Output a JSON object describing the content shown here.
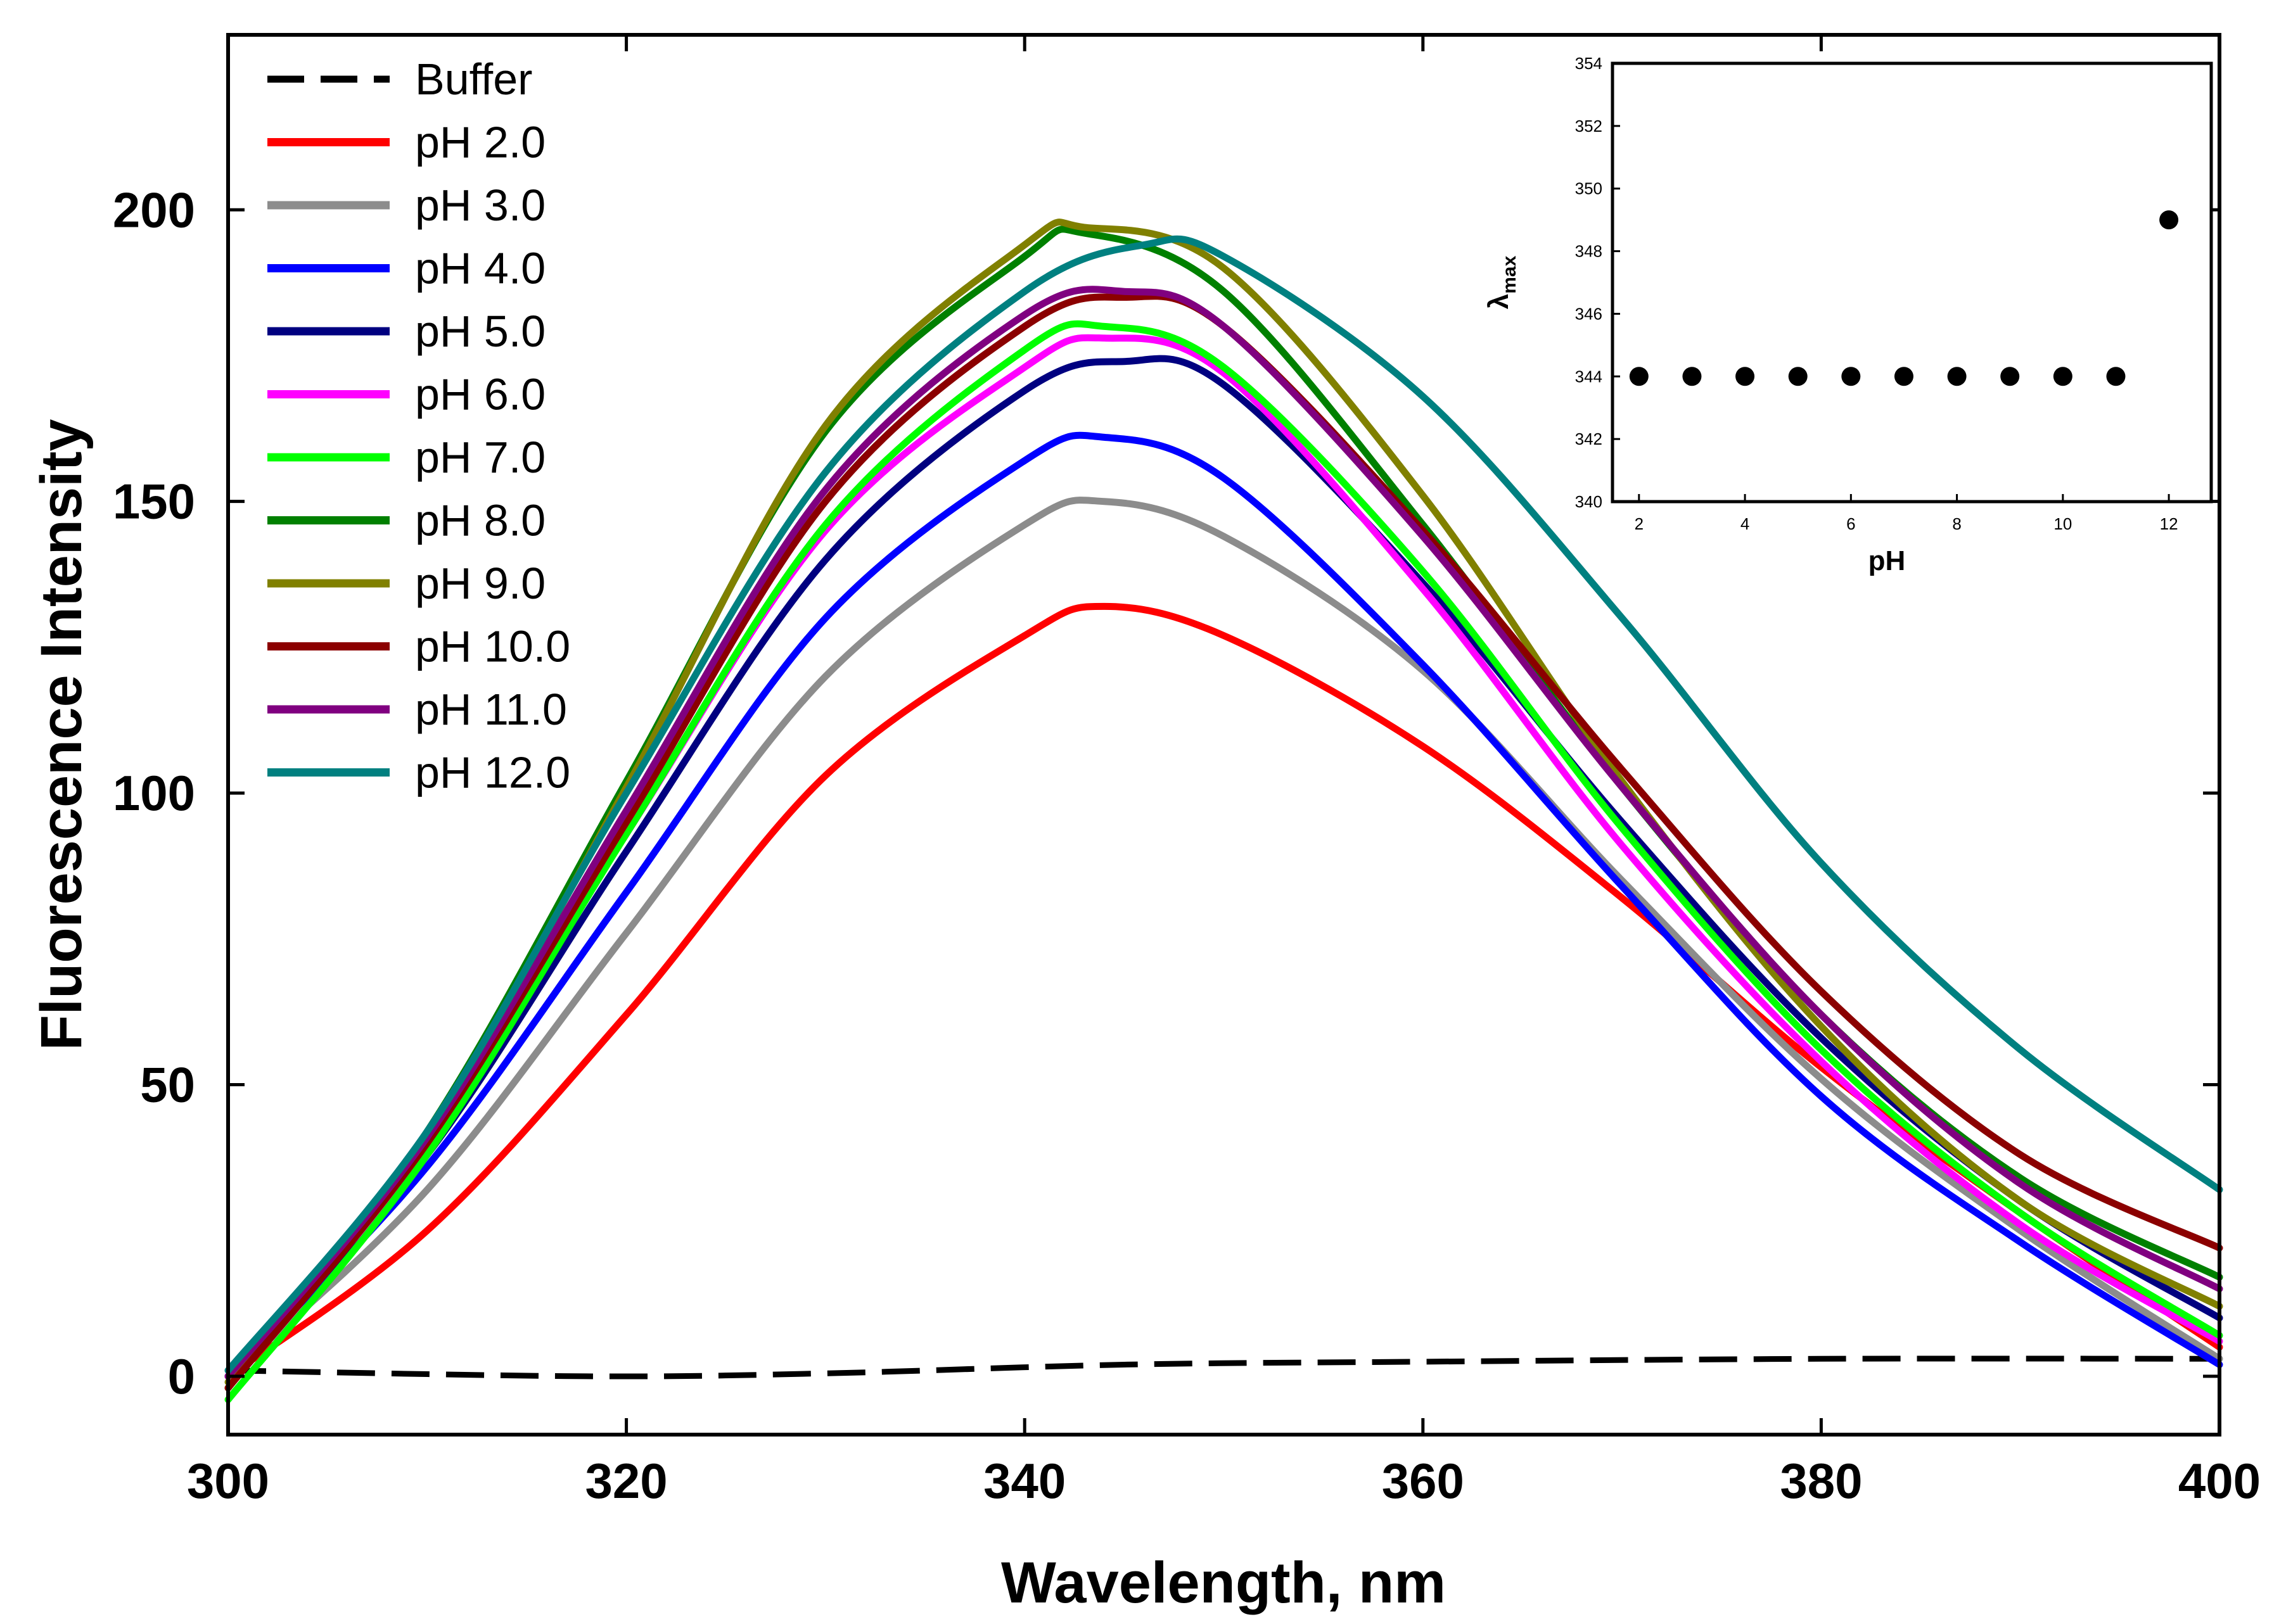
{
  "chart_data": [
    {
      "type": "line",
      "title": "",
      "xlabel": "Wavelength, nm",
      "ylabel": "Fluorescence Intensity",
      "xlim": [
        300,
        400
      ],
      "ylim": [
        -10,
        230
      ],
      "xticks": [
        300,
        320,
        340,
        360,
        380,
        400
      ],
      "yticks": [
        0,
        50,
        100,
        150,
        200
      ],
      "x_tick_labels": [
        "300",
        "320",
        "340",
        "360",
        "380",
        "400"
      ],
      "y_tick_labels": [
        "0",
        "50",
        "100",
        "150",
        "200"
      ],
      "legend": "top-left",
      "series": [
        {
          "name": "Buffer",
          "color": "#000000",
          "dashed": true,
          "x": [
            300,
            318,
            330,
            345,
            360,
            380,
            400
          ],
          "values": [
            1,
            0,
            0.5,
            2,
            2.5,
            3,
            3
          ]
        },
        {
          "name": "pH 2.0",
          "color": "#ff0000",
          "x": [
            300,
            310,
            320,
            330,
            340,
            344,
            350,
            360,
            370,
            380,
            390,
            400
          ],
          "values": [
            0,
            25,
            62,
            103,
            127,
            132,
            127,
            108,
            82,
            53,
            28,
            5
          ]
        },
        {
          "name": "pH 3.0",
          "color": "#8c8c8c",
          "x": [
            300,
            310,
            320,
            330,
            340,
            344,
            350,
            360,
            370,
            380,
            390,
            400
          ],
          "values": [
            0,
            32,
            76,
            120,
            146,
            150,
            144,
            121,
            85,
            51,
            25,
            3
          ]
        },
        {
          "name": "pH 4.0",
          "color": "#0000ff",
          "x": [
            300,
            310,
            320,
            330,
            340,
            344,
            350,
            360,
            370,
            380,
            390,
            400
          ],
          "values": [
            0,
            36,
            83,
            130,
            157,
            161,
            154,
            122,
            84,
            48,
            23,
            2
          ]
        },
        {
          "name": "pH 5.0",
          "color": "#000080",
          "x": [
            300,
            310,
            320,
            330,
            340,
            345,
            350,
            360,
            370,
            380,
            390,
            400
          ],
          "values": [
            0,
            38,
            90,
            140,
            169,
            174,
            170,
            136,
            95,
            58,
            30,
            10
          ]
        },
        {
          "name": "pH 6.0",
          "color": "#ff00ff",
          "x": [
            300,
            310,
            320,
            330,
            340,
            344,
            350,
            360,
            370,
            380,
            390,
            400
          ],
          "values": [
            0,
            39,
            93,
            145,
            173,
            178,
            172,
            135,
            91,
            54,
            26,
            6
          ]
        },
        {
          "name": "pH 7.0",
          "color": "#00ff00",
          "x": [
            300,
            310,
            320,
            330,
            340,
            344,
            350,
            360,
            370,
            380,
            390,
            400
          ],
          "values": [
            -4,
            38,
            93,
            146,
            176,
            180,
            173,
            138,
            94,
            56,
            28,
            7
          ]
        },
        {
          "name": "pH 8.0",
          "color": "#008000",
          "x": [
            300,
            310,
            320,
            330,
            340,
            343,
            350,
            360,
            370,
            380,
            390,
            400
          ],
          "values": [
            -2,
            42,
            102,
            162,
            192,
            196,
            186,
            146,
            101,
            62,
            34,
            17
          ]
        },
        {
          "name": "pH 9.0",
          "color": "#808000",
          "x": [
            300,
            310,
            320,
            330,
            340,
            343,
            350,
            360,
            370,
            380,
            390,
            400
          ],
          "values": [
            -1,
            41,
            101,
            163,
            194,
            197,
            190,
            151,
            102,
            60,
            30,
            12
          ]
        },
        {
          "name": "pH 10.0",
          "color": "#8b0000",
          "x": [
            300,
            310,
            320,
            330,
            340,
            345,
            350,
            360,
            370,
            380,
            390,
            400
          ],
          "values": [
            -2,
            40,
            95,
            150,
            180,
            185,
            180,
            145,
            104,
            66,
            38,
            22
          ]
        },
        {
          "name": "pH 11.0",
          "color": "#800080",
          "x": [
            300,
            310,
            320,
            330,
            340,
            345,
            350,
            360,
            370,
            380,
            390,
            400
          ],
          "values": [
            0,
            41,
            97,
            152,
            182,
            186,
            180,
            144,
            101,
            62,
            33,
            15
          ]
        },
        {
          "name": "pH 12.0",
          "color": "#008080",
          "x": [
            300,
            310,
            320,
            330,
            340,
            346,
            350,
            360,
            370,
            380,
            390,
            400
          ],
          "values": [
            1,
            42,
            100,
            155,
            186,
            194,
            192,
            168,
            130,
            88,
            56,
            32
          ]
        }
      ]
    },
    {
      "type": "scatter",
      "title": "",
      "xlabel": "pH",
      "ylabel_main": "λ",
      "ylabel_sub": "max",
      "xlim": [
        1.5,
        12.8
      ],
      "ylim": [
        340,
        354
      ],
      "xticks": [
        2,
        4,
        6,
        8,
        10,
        12
      ],
      "yticks": [
        340,
        342,
        344,
        346,
        348,
        350,
        352,
        354
      ],
      "x_tick_labels": [
        "2",
        "4",
        "6",
        "8",
        "10",
        "12"
      ],
      "y_tick_labels": [
        "340",
        "342",
        "344",
        "346",
        "348",
        "350",
        "352",
        "354"
      ],
      "legend": "none",
      "series": [
        {
          "name": "λmax",
          "color": "#000000",
          "x": [
            2,
            3,
            4,
            5,
            6,
            7,
            8,
            9,
            10,
            11,
            12
          ],
          "values": [
            344,
            344,
            344,
            344,
            344,
            344,
            344,
            344,
            344,
            344,
            349
          ]
        }
      ]
    }
  ]
}
